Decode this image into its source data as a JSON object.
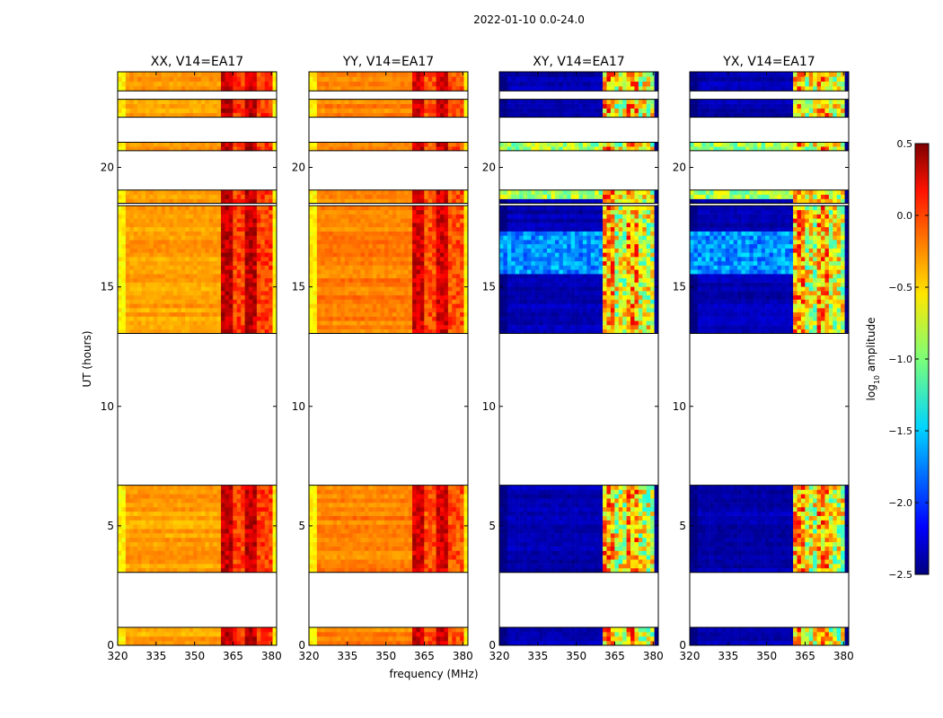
{
  "figure_title": "2022-01-10 0.0-24.0",
  "chart_data": {
    "type": "heatmap",
    "title": "2022-01-10 0.0-24.0",
    "xlabel": "frequency (MHz)",
    "ylabel": "UT (hours)",
    "xlim": [
      320,
      382
    ],
    "ylim": [
      0,
      24
    ],
    "x_ticks": [
      320,
      335,
      350,
      365,
      380
    ],
    "y_ticks": [
      0,
      5,
      10,
      15,
      20
    ],
    "colorbar": {
      "label": "log10 amplitude",
      "label_base": "log",
      "label_sub": "10",
      "label_rest": " amplitude",
      "colormap": "jet",
      "vmin": -2.5,
      "vmax": 0.5,
      "ticks": [
        0.5,
        0.0,
        -0.5,
        -1.0,
        -1.5,
        -2.0,
        -2.5
      ],
      "tick_labels": [
        "0.5",
        "0.0",
        "−0.5",
        "−1.0",
        "−1.5",
        "−2.0",
        "−2.5"
      ]
    },
    "data_time_ranges_hours": [
      [
        0.0,
        0.75
      ],
      [
        3.05,
        6.7
      ],
      [
        13.05,
        18.4
      ],
      [
        18.5,
        19.05
      ],
      [
        20.7,
        21.05
      ],
      [
        22.1,
        22.85
      ],
      [
        23.2,
        24.0
      ]
    ],
    "panels": [
      {
        "name": "XX",
        "title": "XX, V14=EA17",
        "kind": "parallel",
        "base_level": -0.35,
        "edge_level": -0.6,
        "rfi_level": 0.3
      },
      {
        "name": "YY",
        "title": "YY, V14=EA17",
        "kind": "parallel",
        "base_level": -0.25,
        "edge_level": -0.6,
        "rfi_level": 0.25
      },
      {
        "name": "XY",
        "title": "XY, V14=EA17",
        "kind": "cross",
        "base_level": -2.35,
        "edge_level": -2.5,
        "rfi_level": 0.1
      },
      {
        "name": "YX",
        "title": "YX, V14=EA17",
        "kind": "cross",
        "base_level": -2.35,
        "edge_level": -2.5,
        "rfi_level": 0.1
      }
    ]
  }
}
